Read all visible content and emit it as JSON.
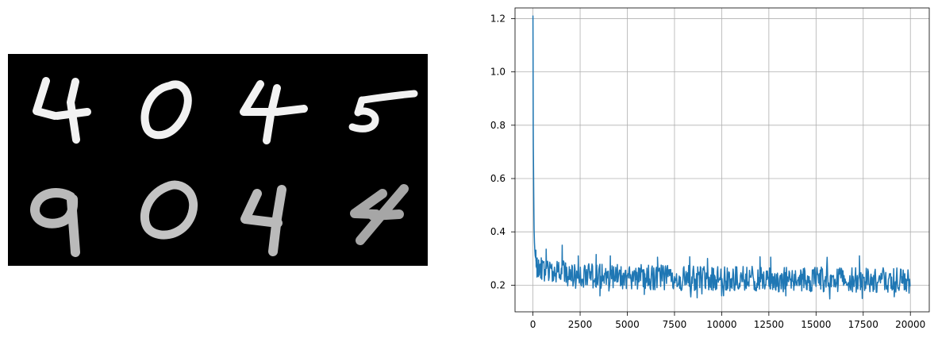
{
  "chart_data": [
    {
      "type": "image",
      "description_rows": [
        [
          "4",
          "0",
          "4",
          "5"
        ],
        [
          "9",
          "0",
          "4",
          "4"
        ]
      ],
      "colors": {
        "background": "#000000",
        "stroke_sharp": "#f2f2f2",
        "stroke_blurry": "#bdbdbd"
      }
    },
    {
      "type": "line",
      "title": "",
      "xlabel": "",
      "ylabel": "",
      "xlim": [
        -950,
        21000
      ],
      "ylim": [
        0.1,
        1.24
      ],
      "xticks": [
        0,
        2500,
        5000,
        7500,
        10000,
        12500,
        15000,
        17500,
        20000
      ],
      "xtick_labels": [
        "0",
        "2500",
        "5000",
        "7500",
        "10000",
        "12500",
        "15000",
        "17500",
        "20000"
      ],
      "yticks": [
        0.2,
        0.4,
        0.6,
        0.8,
        1.0,
        1.2
      ],
      "ytick_labels": [
        "0.2",
        "0.4",
        "0.6",
        "0.8",
        "1.0",
        "1.2"
      ],
      "grid": true,
      "legend": "none",
      "series": [
        {
          "color": "#1f77b4",
          "x": [
            0,
            5,
            10,
            15,
            20,
            30,
            40,
            50,
            60,
            80,
            100,
            120,
            150,
            200,
            250,
            300,
            400,
            500,
            750,
            1000,
            1500,
            2000,
            3000,
            4000,
            5000,
            6000,
            7000,
            8000,
            9000,
            10000,
            11000,
            12000,
            13000,
            14000,
            15000,
            16000,
            17000,
            18000,
            19000,
            20000
          ],
          "y": [
            1.21,
            1.08,
            0.93,
            0.79,
            0.72,
            0.64,
            0.55,
            0.47,
            0.41,
            0.36,
            0.33,
            0.31,
            0.3,
            0.28,
            0.27,
            0.27,
            0.26,
            0.26,
            0.255,
            0.25,
            0.245,
            0.24,
            0.235,
            0.232,
            0.23,
            0.23,
            0.228,
            0.227,
            0.226,
            0.225,
            0.224,
            0.223,
            0.222,
            0.222,
            0.221,
            0.22,
            0.22,
            0.219,
            0.218,
            0.218
          ],
          "noise_band": 0.045,
          "spike_x": [
            700,
            1550,
            2400,
            3350,
            4100,
            6600,
            9250,
            12600,
            17300
          ],
          "spike_y": [
            0.335,
            0.35,
            0.31,
            0.315,
            0.31,
            0.305,
            0.3,
            0.305,
            0.31
          ],
          "dip_x": [
            3550,
            5900,
            10000,
            13400,
            17450
          ],
          "dip_y": [
            0.16,
            0.165,
            0.16,
            0.16,
            0.15
          ]
        }
      ]
    }
  ]
}
